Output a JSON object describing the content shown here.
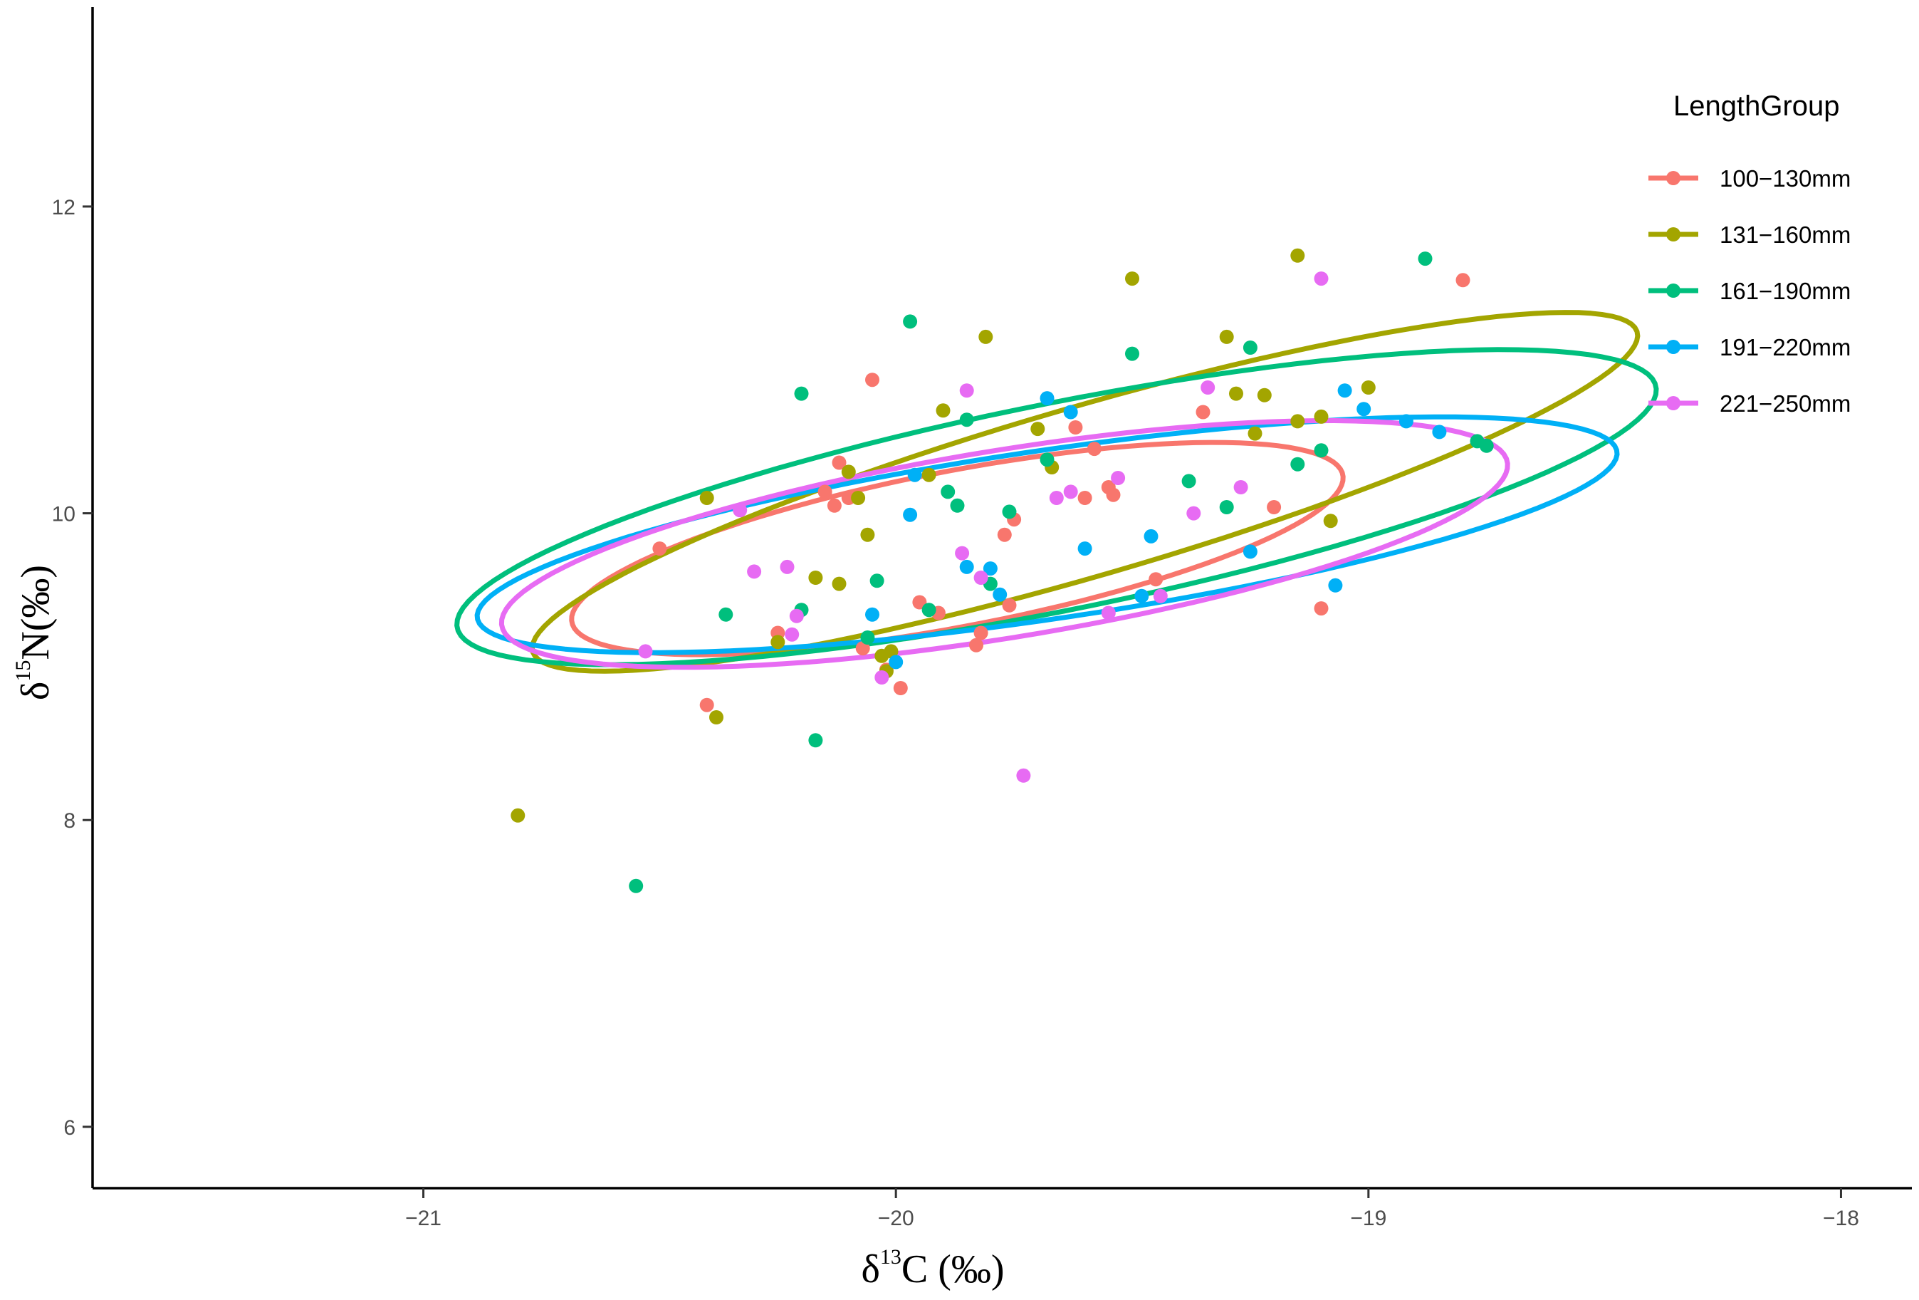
{
  "chart_data": {
    "type": "scatter",
    "xlabel": {
      "symbol": "δ",
      "superscript": "13",
      "rest": "C (‰)"
    },
    "ylabel": {
      "symbol": "δ",
      "superscript": "15",
      "rest": "N(‰)"
    },
    "xlim": [
      -21.7,
      -17.85
    ],
    "ylim": [
      5.6,
      13.3
    ],
    "x_ticks": [
      -21,
      -20,
      -19,
      -18
    ],
    "y_ticks": [
      6,
      8,
      10,
      12
    ],
    "x_tick_labels": [
      "−21",
      "−20",
      "−19",
      "−18"
    ],
    "y_tick_labels": [
      "6",
      "8",
      "10",
      "12"
    ],
    "grid": false,
    "legend": {
      "title": "LengthGroup",
      "position": "right"
    },
    "series": [
      {
        "name": "100−130mm",
        "color": "#F8766D",
        "points": [
          [
            -20.5,
            9.77
          ],
          [
            -20.4,
            8.75
          ],
          [
            -20.25,
            9.22
          ],
          [
            -20.15,
            10.14
          ],
          [
            -20.13,
            10.05
          ],
          [
            -20.12,
            10.33
          ],
          [
            -20.1,
            10.1
          ],
          [
            -20.07,
            9.12
          ],
          [
            -20.05,
            10.87
          ],
          [
            -20.02,
            8.98
          ],
          [
            -19.99,
            8.86
          ],
          [
            -19.95,
            9.42
          ],
          [
            -19.91,
            9.35
          ],
          [
            -19.83,
            9.14
          ],
          [
            -19.82,
            9.22
          ],
          [
            -19.77,
            9.86
          ],
          [
            -19.75,
            9.96
          ],
          [
            -19.76,
            9.4
          ],
          [
            -19.62,
            10.56
          ],
          [
            -19.6,
            10.1
          ],
          [
            -19.58,
            10.42
          ],
          [
            -19.55,
            10.17
          ],
          [
            -19.54,
            10.12
          ],
          [
            -19.45,
            9.57
          ],
          [
            -19.35,
            10.66
          ],
          [
            -19.2,
            10.04
          ],
          [
            -19.1,
            9.38
          ],
          [
            -18.8,
            11.52
          ]
        ]
      },
      {
        "name": "131−160mm",
        "color": "#A3A500",
        "points": [
          [
            -20.8,
            8.03
          ],
          [
            -20.4,
            10.1
          ],
          [
            -20.38,
            8.67
          ],
          [
            -20.25,
            9.16
          ],
          [
            -20.17,
            9.58
          ],
          [
            -20.12,
            9.54
          ],
          [
            -20.1,
            10.27
          ],
          [
            -20.08,
            10.1
          ],
          [
            -20.06,
            9.86
          ],
          [
            -20.03,
            9.07
          ],
          [
            -20.02,
            8.97
          ],
          [
            -20.01,
            9.1
          ],
          [
            -19.93,
            10.25
          ],
          [
            -19.9,
            10.67
          ],
          [
            -19.81,
            11.15
          ],
          [
            -19.7,
            10.55
          ],
          [
            -19.67,
            10.3
          ],
          [
            -19.5,
            11.53
          ],
          [
            -19.3,
            11.15
          ],
          [
            -19.28,
            10.78
          ],
          [
            -19.24,
            10.52
          ],
          [
            -19.22,
            10.77
          ],
          [
            -19.15,
            11.68
          ],
          [
            -19.15,
            10.6
          ],
          [
            -19.1,
            10.63
          ],
          [
            -19.08,
            9.95
          ],
          [
            -19.0,
            10.82
          ]
        ]
      },
      {
        "name": "161−190mm",
        "color": "#00BF7D",
        "points": [
          [
            -20.55,
            7.57
          ],
          [
            -20.36,
            9.34
          ],
          [
            -20.2,
            9.37
          ],
          [
            -20.2,
            10.78
          ],
          [
            -20.17,
            8.52
          ],
          [
            -20.06,
            9.19
          ],
          [
            -20.04,
            9.56
          ],
          [
            -19.97,
            11.25
          ],
          [
            -19.93,
            9.37
          ],
          [
            -19.89,
            10.14
          ],
          [
            -19.87,
            10.05
          ],
          [
            -19.85,
            10.61
          ],
          [
            -19.8,
            9.54
          ],
          [
            -19.76,
            10.01
          ],
          [
            -19.68,
            10.35
          ],
          [
            -19.5,
            11.04
          ],
          [
            -19.38,
            10.21
          ],
          [
            -19.3,
            10.04
          ],
          [
            -19.25,
            11.08
          ],
          [
            -19.15,
            10.32
          ],
          [
            -19.1,
            10.41
          ],
          [
            -18.88,
            11.66
          ],
          [
            -18.77,
            10.47
          ],
          [
            -18.75,
            10.44
          ]
        ]
      },
      {
        "name": "191−220mm",
        "color": "#00B0F6",
        "points": [
          [
            -20.05,
            9.34
          ],
          [
            -20.0,
            9.03
          ],
          [
            -19.97,
            9.99
          ],
          [
            -19.96,
            10.25
          ],
          [
            -19.85,
            9.65
          ],
          [
            -19.8,
            9.64
          ],
          [
            -19.78,
            9.47
          ],
          [
            -19.68,
            10.75
          ],
          [
            -19.63,
            10.66
          ],
          [
            -19.6,
            9.77
          ],
          [
            -19.48,
            9.46
          ],
          [
            -19.46,
            9.85
          ],
          [
            -19.25,
            9.75
          ],
          [
            -19.07,
            9.53
          ],
          [
            -19.05,
            10.8
          ],
          [
            -19.01,
            10.68
          ],
          [
            -18.92,
            10.6
          ],
          [
            -18.85,
            10.53
          ]
        ]
      },
      {
        "name": "221−250mm",
        "color": "#E76BF3",
        "points": [
          [
            -20.53,
            9.1
          ],
          [
            -20.33,
            10.02
          ],
          [
            -20.3,
            9.62
          ],
          [
            -20.23,
            9.65
          ],
          [
            -20.22,
            9.21
          ],
          [
            -20.21,
            9.33
          ],
          [
            -20.03,
            8.93
          ],
          [
            -19.86,
            9.74
          ],
          [
            -19.85,
            10.8
          ],
          [
            -19.82,
            9.58
          ],
          [
            -19.73,
            8.29
          ],
          [
            -19.66,
            10.1
          ],
          [
            -19.63,
            10.14
          ],
          [
            -19.55,
            9.35
          ],
          [
            -19.53,
            10.23
          ],
          [
            -19.44,
            9.46
          ],
          [
            -19.37,
            10.0
          ],
          [
            -19.34,
            10.82
          ],
          [
            -19.27,
            10.17
          ],
          [
            -19.1,
            11.53
          ]
        ]
      }
    ],
    "ellipses": [
      {
        "series": "100−130mm",
        "color": "#F8766D",
        "cx": -19.87,
        "cy": 9.77,
        "rx": 0.98,
        "ry": 0.43,
        "angle_deg": 38
      },
      {
        "series": "131−160mm",
        "color": "#A3A500",
        "cx": -19.6,
        "cy": 10.14,
        "rx": 1.6,
        "ry": 0.42,
        "angle_deg": 45
      },
      {
        "series": "161−190mm",
        "color": "#00BF7D",
        "cx": -19.66,
        "cy": 10.04,
        "rx": 1.53,
        "ry": 0.57,
        "angle_deg": 37
      },
      {
        "series": "191−220mm",
        "color": "#00B0F6",
        "cx": -19.68,
        "cy": 9.86,
        "rx": 1.34,
        "ry": 0.5,
        "angle_deg": 28
      },
      {
        "series": "221−250mm",
        "color": "#E76BF3",
        "cx": -19.77,
        "cy": 9.8,
        "rx": 1.22,
        "ry": 0.54,
        "angle_deg": 33
      }
    ]
  }
}
